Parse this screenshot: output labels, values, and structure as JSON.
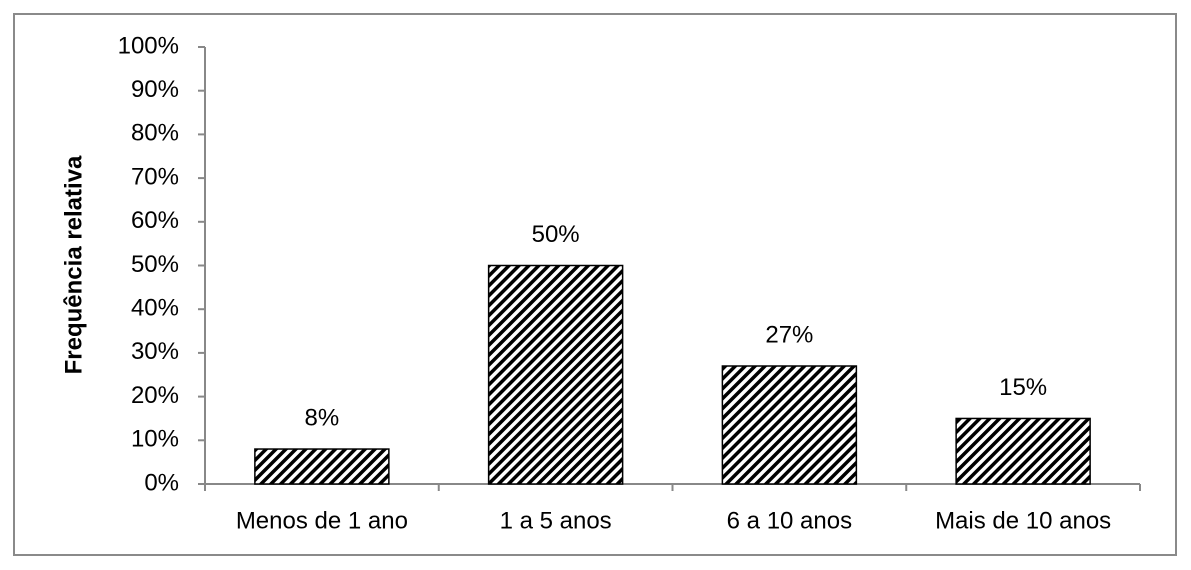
{
  "chart_data": {
    "type": "bar",
    "y_label": "Frequência relativa",
    "categories": [
      "Menos de 1 ano",
      "1 a 5 anos",
      "6 a 10 anos",
      "Mais de 10 anos"
    ],
    "values": [
      8,
      50,
      27,
      15
    ],
    "value_labels": [
      "8%",
      "50%",
      "27%",
      "15%"
    ],
    "color": "#000000",
    "ylim": [
      0,
      100
    ],
    "yticks": [
      {
        "value": 0,
        "label": "0%"
      },
      {
        "value": 10,
        "label": "10%"
      },
      {
        "value": 20,
        "label": "20%"
      },
      {
        "value": 30,
        "label": "30%"
      },
      {
        "value": 40,
        "label": "40%"
      },
      {
        "value": 50,
        "label": "50%"
      },
      {
        "value": 60,
        "label": "60%"
      },
      {
        "value": 70,
        "label": "70%"
      },
      {
        "value": 80,
        "label": "80%"
      },
      {
        "value": 90,
        "label": "90%"
      },
      {
        "value": 100,
        "label": "100%"
      }
    ],
    "grid": false
  }
}
